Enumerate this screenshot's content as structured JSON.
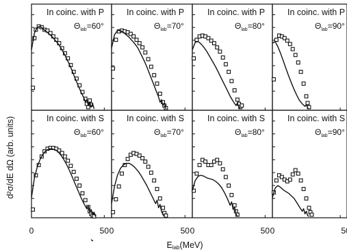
{
  "chart_data": {
    "type": "scatter",
    "ylabel": "d²σ/dE dΩ (arb. units)",
    "xlabel": "E",
    "xlabel_sub": "lab",
    "xlabel_unit": "(MeV)",
    "xlim": [
      0,
      55
    ],
    "x_tick_labels": [
      "0",
      "50"
    ],
    "y_scale": "log",
    "grid": false,
    "panels": [
      {
        "row": 0,
        "col": 0,
        "label": "In coinc. with P",
        "angle_sym": "Θ",
        "angle_sub": "lab",
        "angle_val": "=60°",
        "series": [
          {
            "kind": "points",
            "x": [
              1,
              2,
              3,
              5,
              7,
              9,
              11,
              13,
              15,
              17,
              19,
              21,
              23,
              25,
              27,
              29,
              31,
              33,
              35,
              37,
              38,
              39,
              40,
              41
            ],
            "y": [
              0.25,
              0.84,
              0.94,
              0.98,
              0.97,
              0.94,
              0.93,
              0.9,
              0.86,
              0.82,
              0.78,
              0.72,
              0.66,
              0.6,
              0.52,
              0.44,
              0.36,
              0.28,
              0.2,
              0.12,
              0.06,
              0.02,
              0.1,
              0.05
            ]
          },
          {
            "kind": "line",
            "x": [
              0,
              2,
              4,
              6,
              8,
              10,
              12,
              14,
              16,
              18,
              20,
              22,
              24,
              26,
              28,
              30,
              32,
              34,
              36,
              37,
              38,
              39,
              40,
              41,
              42,
              43
            ],
            "y": [
              0.7,
              0.9,
              0.97,
              0.98,
              0.95,
              0.92,
              0.89,
              0.86,
              0.82,
              0.78,
              0.73,
              0.67,
              0.6,
              0.53,
              0.45,
              0.36,
              0.28,
              0.2,
              0.13,
              0.08,
              0.11,
              0.04,
              0.08,
              0.02,
              0.06,
              0.0
            ]
          }
        ]
      },
      {
        "row": 0,
        "col": 1,
        "label": "In coinc. with P",
        "angle_sym": "Θ",
        "angle_sub": "lab",
        "angle_val": "=70°",
        "series": [
          {
            "kind": "points",
            "x": [
              1,
              3,
              5,
              7,
              9,
              11,
              13,
              15,
              17,
              19,
              21,
              23,
              25,
              27,
              29,
              31,
              33,
              35,
              36,
              37
            ],
            "y": [
              0.48,
              0.82,
              0.92,
              0.93,
              0.92,
              0.91,
              0.89,
              0.86,
              0.82,
              0.78,
              0.73,
              0.67,
              0.59,
              0.5,
              0.4,
              0.3,
              0.18,
              0.08,
              0.04,
              0.01
            ]
          },
          {
            "kind": "line",
            "x": [
              0,
              2,
              4,
              6,
              8,
              10,
              12,
              14,
              16,
              18,
              20,
              22,
              24,
              26,
              28,
              30,
              32,
              33,
              34,
              35,
              36,
              37
            ],
            "y": [
              0.72,
              0.88,
              0.93,
              0.93,
              0.91,
              0.88,
              0.85,
              0.81,
              0.77,
              0.72,
              0.65,
              0.58,
              0.5,
              0.41,
              0.32,
              0.23,
              0.14,
              0.08,
              0.11,
              0.04,
              0.07,
              0.0
            ]
          }
        ]
      },
      {
        "row": 0,
        "col": 2,
        "label": "In coinc. with P",
        "angle_sym": "Θ",
        "angle_sub": "lab",
        "angle_val": "=80°",
        "series": [
          {
            "kind": "points",
            "x": [
              1,
              3,
              5,
              7,
              9,
              11,
              13,
              15,
              17,
              19,
              21,
              23,
              25,
              27,
              29,
              31,
              32,
              33,
              34
            ],
            "y": [
              0.6,
              0.82,
              0.86,
              0.87,
              0.86,
              0.84,
              0.81,
              0.78,
              0.73,
              0.68,
              0.61,
              0.53,
              0.44,
              0.33,
              0.22,
              0.11,
              0.06,
              0.02,
              0.04
            ]
          },
          {
            "kind": "line",
            "x": [
              0,
              2,
              4,
              6,
              8,
              10,
              12,
              14,
              16,
              18,
              20,
              22,
              24,
              26,
              28,
              30,
              31,
              32,
              33
            ],
            "y": [
              0.7,
              0.79,
              0.8,
              0.77,
              0.73,
              0.68,
              0.62,
              0.56,
              0.5,
              0.43,
              0.36,
              0.29,
              0.22,
              0.15,
              0.09,
              0.04,
              0.07,
              0.02,
              0.0
            ]
          }
        ]
      },
      {
        "row": 0,
        "col": 3,
        "label": "In coinc. with P",
        "angle_sym": "Θ",
        "angle_sub": "lab",
        "angle_val": "=90°",
        "series": [
          {
            "kind": "points",
            "x": [
              1,
              3,
              5,
              7,
              9,
              11,
              13,
              15,
              17,
              19,
              21,
              23,
              25,
              26,
              27
            ],
            "y": [
              0.35,
              0.82,
              0.87,
              0.86,
              0.84,
              0.81,
              0.77,
              0.71,
              0.64,
              0.55,
              0.44,
              0.3,
              0.15,
              0.07,
              0.02
            ]
          },
          {
            "kind": "line",
            "x": [
              0,
              2,
              4,
              6,
              8,
              10,
              12,
              14,
              16,
              18,
              20,
              22,
              24,
              25,
              26,
              27
            ],
            "y": [
              0.78,
              0.8,
              0.74,
              0.66,
              0.57,
              0.48,
              0.39,
              0.31,
              0.23,
              0.16,
              0.1,
              0.06,
              0.03,
              0.05,
              0.01,
              0.0
            ]
          }
        ]
      },
      {
        "row": 1,
        "col": 0,
        "label": "In coinc. with S",
        "angle_sym": "Θ",
        "angle_sub": "lab",
        "angle_val": "=60°",
        "series": [
          {
            "kind": "points",
            "x": [
              1,
              3,
              5,
              7,
              9,
              11,
              13,
              15,
              17,
              19,
              21,
              23,
              25,
              27,
              29,
              31,
              33,
              35,
              37,
              39,
              40,
              41,
              42,
              43
            ],
            "y": [
              0.08,
              0.48,
              0.6,
              0.7,
              0.76,
              0.79,
              0.8,
              0.8,
              0.79,
              0.77,
              0.74,
              0.7,
              0.65,
              0.59,
              0.52,
              0.44,
              0.36,
              0.27,
              0.19,
              0.11,
              0.06,
              0.03,
              0.01,
              0.0
            ]
          },
          {
            "kind": "line",
            "x": [
              0,
              2,
              4,
              6,
              8,
              10,
              12,
              14,
              16,
              18,
              20,
              22,
              24,
              26,
              28,
              30,
              32,
              34,
              36,
              38,
              39,
              40,
              41,
              42,
              43,
              44
            ],
            "y": [
              0.22,
              0.45,
              0.58,
              0.67,
              0.73,
              0.77,
              0.79,
              0.79,
              0.78,
              0.76,
              0.72,
              0.67,
              0.61,
              0.54,
              0.46,
              0.38,
              0.3,
              0.22,
              0.15,
              0.09,
              0.12,
              0.05,
              0.08,
              0.02,
              0.05,
              0.0
            ]
          }
        ]
      },
      {
        "row": 1,
        "col": 1,
        "label": "In coinc. with S",
        "angle_sym": "Θ",
        "angle_sub": "lab",
        "angle_val": "=70°",
        "series": [
          {
            "kind": "points",
            "x": [
              1,
              3,
              5,
              7,
              9,
              11,
              13,
              15,
              17,
              19,
              21,
              23,
              25,
              27,
              29,
              31,
              33,
              35,
              36,
              37
            ],
            "y": [
              0.05,
              0.2,
              0.35,
              0.5,
              0.6,
              0.67,
              0.72,
              0.74,
              0.73,
              0.71,
              0.68,
              0.64,
              0.58,
              0.51,
              0.42,
              0.32,
              0.21,
              0.1,
              0.04,
              0.01
            ]
          },
          {
            "kind": "line",
            "x": [
              0,
              2,
              4,
              6,
              8,
              10,
              12,
              14,
              16,
              18,
              20,
              22,
              24,
              26,
              28,
              30,
              31,
              32,
              33,
              34,
              35,
              36
            ],
            "y": [
              0.15,
              0.35,
              0.48,
              0.56,
              0.6,
              0.62,
              0.62,
              0.6,
              0.57,
              0.53,
              0.48,
              0.42,
              0.36,
              0.29,
              0.22,
              0.15,
              0.19,
              0.1,
              0.14,
              0.06,
              0.02,
              0.0
            ]
          }
        ]
      },
      {
        "row": 1,
        "col": 2,
        "label": "In coinc. with S",
        "angle_sym": "Θ",
        "angle_sub": "lab",
        "angle_val": "=80°",
        "series": [
          {
            "kind": "points",
            "x": [
              1,
              3,
              5,
              7,
              9,
              11,
              13,
              15,
              17,
              19,
              21,
              23,
              25,
              27,
              29,
              30,
              31
            ],
            "y": [
              0.3,
              0.5,
              0.6,
              0.66,
              0.64,
              0.6,
              0.6,
              0.64,
              0.66,
              0.62,
              0.55,
              0.46,
              0.36,
              0.25,
              0.13,
              0.06,
              0.02
            ]
          },
          {
            "kind": "line",
            "x": [
              0,
              2,
              4,
              6,
              8,
              10,
              12,
              14,
              16,
              18,
              20,
              22,
              24,
              26,
              27,
              28,
              29,
              30,
              31
            ],
            "y": [
              0.3,
              0.42,
              0.47,
              0.48,
              0.47,
              0.45,
              0.44,
              0.43,
              0.41,
              0.38,
              0.34,
              0.28,
              0.21,
              0.13,
              0.17,
              0.08,
              0.11,
              0.03,
              0.0
            ]
          }
        ]
      },
      {
        "row": 1,
        "col": 3,
        "label": "In coinc. with S",
        "angle_sym": "Θ",
        "angle_sub": "lab",
        "angle_val": "=90°",
        "series": [
          {
            "kind": "points",
            "x": [
              1,
              3,
              5,
              7,
              9,
              11,
              13,
              15,
              17,
              19,
              21,
              23,
              25,
              27,
              28,
              29
            ],
            "y": [
              0.28,
              0.42,
              0.48,
              0.46,
              0.43,
              0.41,
              0.43,
              0.49,
              0.54,
              0.5,
              0.42,
              0.32,
              0.21,
              0.1,
              0.05,
              0.02
            ]
          },
          {
            "kind": "line",
            "x": [
              0,
              2,
              4,
              6,
              8,
              10,
              12,
              14,
              16,
              18,
              20,
              22,
              23,
              24,
              25,
              26,
              27
            ],
            "y": [
              0.22,
              0.33,
              0.36,
              0.34,
              0.31,
              0.29,
              0.27,
              0.24,
              0.21,
              0.16,
              0.11,
              0.06,
              0.09,
              0.03,
              0.06,
              0.01,
              0.0
            ]
          }
        ]
      }
    ]
  }
}
